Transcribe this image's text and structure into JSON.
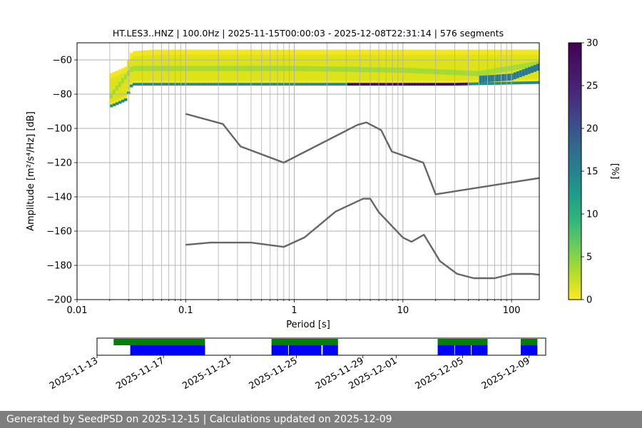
{
  "chart_data": [
    {
      "type": "heatmap",
      "title": "HT.LES3..HNZ | 100.0Hz | 2025-11-15T00:00:03 - 2025-12-08T22:31:14 | 576 segments",
      "xlabel": "Period [s]",
      "ylabel": "Amplitude [m²/s⁴/Hz] [dB]",
      "x_scale": "log",
      "xlim": [
        0.01,
        180
      ],
      "ylim": [
        -200,
        -50
      ],
      "x_ticks": [
        0.01,
        0.1,
        1,
        10,
        100
      ],
      "x_tick_labels": [
        "0.01",
        "0.1",
        "1",
        "10",
        "100"
      ],
      "y_ticks": [
        -200,
        -180,
        -160,
        -140,
        -120,
        -100,
        -80,
        -60
      ],
      "y_tick_labels": [
        "−200",
        "−180",
        "−160",
        "−140",
        "−120",
        "−100",
        "−80",
        "−60"
      ],
      "grid": true,
      "colorbar": {
        "label": "[%]",
        "range": [
          0,
          30
        ],
        "ticks": [
          0,
          5,
          10,
          15,
          20,
          25,
          30
        ],
        "tick_labels": [
          "0",
          "5",
          "10",
          "15",
          "20",
          "25",
          "30"
        ],
        "colormap": "viridis_r"
      },
      "ppsd_band": [
        {
          "period": 0.02,
          "upper": -68,
          "lower": -88
        },
        {
          "period": 0.024,
          "upper": -66,
          "lower": -86
        },
        {
          "period": 0.028,
          "upper": -64,
          "lower": -84
        },
        {
          "period": 0.032,
          "upper": -55,
          "lower": -75
        },
        {
          "period": 0.05,
          "upper": -54,
          "lower": -75
        },
        {
          "period": 0.3,
          "upper": -54,
          "lower": -75
        },
        {
          "period": 3,
          "upper": -54,
          "lower": -75
        },
        {
          "period": 30,
          "upper": -54,
          "lower": -75
        },
        {
          "period": 180,
          "upper": -54,
          "lower": -74
        }
      ],
      "ppsd_mode_line": [
        {
          "period": 0.02,
          "value": -82
        },
        {
          "period": 0.032,
          "value": -65
        },
        {
          "period": 1,
          "value": -65
        },
        {
          "period": 10,
          "value": -66
        },
        {
          "period": 50,
          "value": -68
        },
        {
          "period": 180,
          "value": -62
        }
      ],
      "ppsd_low_edge": [
        {
          "period": 0.2,
          "value": -73
        },
        {
          "period": 2,
          "value": -74
        },
        {
          "period": 20,
          "value": -73
        },
        {
          "period": 100,
          "value": -70
        },
        {
          "period": 180,
          "value": -64
        }
      ],
      "series": [
        {
          "name": "NHNM",
          "color": "#666666",
          "points": [
            [
              0.1,
              -91.5
            ],
            [
              0.22,
              -97.4
            ],
            [
              0.32,
              -110.5
            ],
            [
              0.8,
              -120
            ],
            [
              3.8,
              -98
            ],
            [
              4.6,
              -96.5
            ],
            [
              6.3,
              -101
            ],
            [
              7.9,
              -113.5
            ],
            [
              15.4,
              -120
            ],
            [
              20,
              -138.5
            ],
            [
              180,
              -129
            ]
          ]
        },
        {
          "name": "NLNM",
          "color": "#666666",
          "points": [
            [
              0.1,
              -168
            ],
            [
              0.17,
              -166.7
            ],
            [
              0.4,
              -166.7
            ],
            [
              0.8,
              -169.2
            ],
            [
              1.24,
              -163.7
            ],
            [
              2.4,
              -148.6
            ],
            [
              4.3,
              -141.1
            ],
            [
              5,
              -141.1
            ],
            [
              6,
              -149
            ],
            [
              10,
              -163.8
            ],
            [
              12,
              -166.2
            ],
            [
              15.6,
              -162.1
            ],
            [
              21.9,
              -177.5
            ],
            [
              31.6,
              -185
            ],
            [
              45,
              -187.5
            ],
            [
              70,
              -187.5
            ],
            [
              101,
              -185
            ],
            [
              154,
              -185
            ],
            [
              180,
              -185.5
            ]
          ]
        }
      ]
    },
    {
      "type": "timeline",
      "tick_labels": [
        "2025-11-13",
        "2025-11-17",
        "2025-11-21",
        "2025-11-25",
        "2025-11-29",
        "2025-12-01",
        "2025-12-05",
        "2025-12-09"
      ],
      "tick_dates": [
        "2025-11-13",
        "2025-11-17",
        "2025-11-21",
        "2025-11-25",
        "2025-11-29",
        "2025-12-01",
        "2025-12-05",
        "2025-12-09"
      ],
      "xlim": [
        "2025-11-13T00:00",
        "2025-12-10T00:00"
      ],
      "available_color": "#008000",
      "used_color": "#0000ff",
      "available": [
        [
          "2025-11-14T00:00",
          "2025-11-19T12:00"
        ],
        [
          "2025-11-23T12:00",
          "2025-11-27T12:00"
        ],
        [
          "2025-12-03T12:00",
          "2025-12-06T12:00"
        ],
        [
          "2025-12-08T12:00",
          "2025-12-09T12:00"
        ]
      ],
      "used": [
        [
          "2025-11-15T00:00",
          "2025-11-19T12:00"
        ],
        [
          "2025-11-23T12:00",
          "2025-11-24T12:00"
        ],
        [
          "2025-11-24T13:00",
          "2025-11-26T12:00"
        ],
        [
          "2025-11-26T14:00",
          "2025-11-27T12:00"
        ],
        [
          "2025-12-03T12:00",
          "2025-12-04T12:00"
        ],
        [
          "2025-12-04T13:00",
          "2025-12-05T12:00"
        ],
        [
          "2025-12-05T13:00",
          "2025-12-06T12:00"
        ],
        [
          "2025-12-08T12:00",
          "2025-12-09T12:00"
        ]
      ]
    }
  ],
  "footer": {
    "text": "Generated by SeedPSD on 2025-12-15 | Calculations updated on 2025-12-09"
  }
}
